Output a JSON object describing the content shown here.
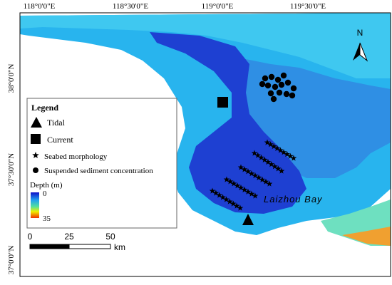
{
  "map": {
    "top_labels": [
      "118°0'0\"E",
      "118°30'0\"E",
      "119°0'0\"E",
      "119°30'0\"E"
    ],
    "left_labels": [
      "38°0'0\"N",
      "37°30'0\"N",
      "37°0'0\"N"
    ],
    "north": "N",
    "place": "Laizhou Bay",
    "legend": {
      "title": "Legend",
      "items": [
        "Tidal",
        "Current",
        "Seabed morphology",
        "Suspended sediment concentration"
      ],
      "depth_title": "Depth (m)",
      "depth_min": 0,
      "depth_max": 35
    },
    "scale": {
      "ticks": [
        0,
        25,
        50
      ],
      "unit": "km"
    }
  }
}
